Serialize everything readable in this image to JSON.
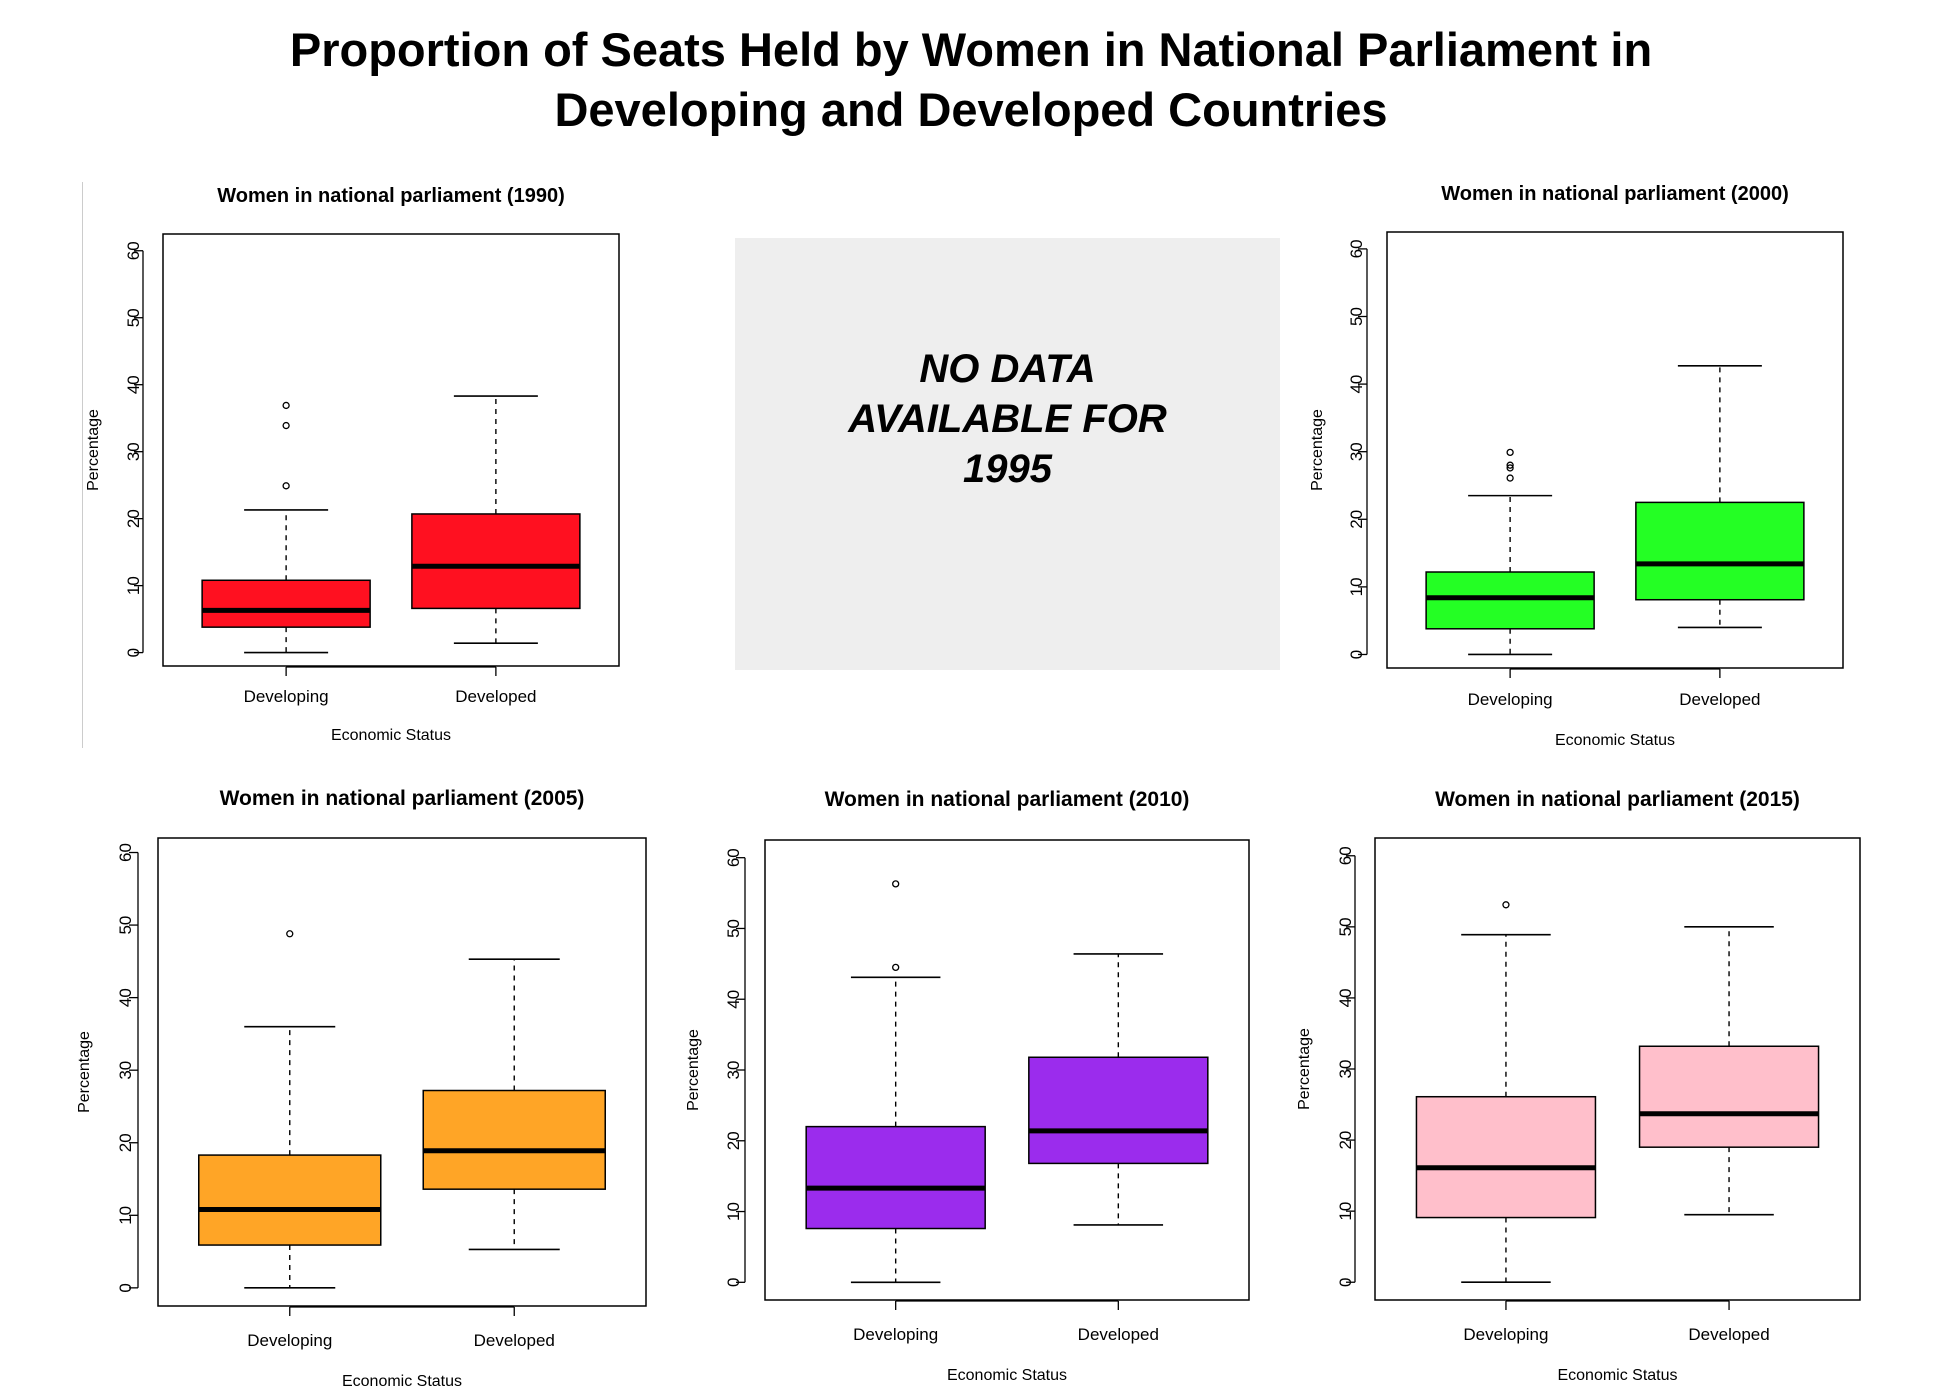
{
  "title_lines": [
    "Proportion of Seats Held by Women in National Parliament in",
    "Developing and Developed Countries"
  ],
  "no_data_text": "NO DATA AVAILABLE FOR 1995",
  "chart_data": [
    {
      "type": "boxplot",
      "year": "1990",
      "title": "Women in national parliament (1990)",
      "xlabel": "Economic Status",
      "ylabel": "Percentage",
      "categories": [
        "Developing",
        "Developed"
      ],
      "ylim": [
        -2,
        62.5
      ],
      "yticks": [
        0,
        10,
        20,
        30,
        40,
        50,
        60
      ],
      "fill": "#ff1020",
      "boxes": [
        {
          "min": 0,
          "q1": 3.8,
          "median": 6.3,
          "q3": 10.8,
          "max": 21.3,
          "outliers": [
            24.9,
            33.9,
            36.9
          ]
        },
        {
          "min": 1.4,
          "q1": 6.6,
          "median": 12.9,
          "q3": 20.7,
          "max": 38.3,
          "outliers": []
        }
      ]
    },
    {
      "type": "boxplot",
      "year": "2000",
      "title": "Women in national parliament (2000)",
      "xlabel": "Economic Status",
      "ylabel": "Percentage",
      "categories": [
        "Developing",
        "Developed"
      ],
      "ylim": [
        -2,
        62.5
      ],
      "yticks": [
        0,
        10,
        20,
        30,
        40,
        50,
        60
      ],
      "fill": "#24ff24",
      "boxes": [
        {
          "min": 0,
          "q1": 3.8,
          "median": 8.4,
          "q3": 12.2,
          "max": 23.5,
          "outliers": [
            26.1,
            27.6,
            28.0,
            29.9
          ]
        },
        {
          "min": 4.0,
          "q1": 8.1,
          "median": 13.4,
          "q3": 22.5,
          "max": 42.7,
          "outliers": []
        }
      ]
    },
    {
      "type": "boxplot",
      "year": "2005",
      "title": "Women in national parliament (2005)",
      "xlabel": "Economic Status",
      "ylabel": "Percentage",
      "categories": [
        "Developing",
        "Developed"
      ],
      "ylim": [
        -2.5,
        62
      ],
      "yticks": [
        0,
        10,
        20,
        30,
        40,
        50,
        60
      ],
      "fill": "#ffa526",
      "boxes": [
        {
          "min": 0,
          "q1": 5.9,
          "median": 10.8,
          "q3": 18.3,
          "max": 36.0,
          "outliers": [
            48.8
          ]
        },
        {
          "min": 5.3,
          "q1": 13.6,
          "median": 18.9,
          "q3": 27.2,
          "max": 45.3,
          "outliers": []
        }
      ]
    },
    {
      "type": "boxplot",
      "year": "2010",
      "title": "Women in national parliament (2010)",
      "xlabel": "Economic Status",
      "ylabel": "Percentage",
      "categories": [
        "Developing",
        "Developed"
      ],
      "ylim": [
        -2.5,
        62.5
      ],
      "yticks": [
        0,
        10,
        20,
        30,
        40,
        50,
        60
      ],
      "fill": "#9b2ced",
      "boxes": [
        {
          "min": 0,
          "q1": 7.6,
          "median": 13.3,
          "q3": 22.0,
          "max": 43.1,
          "outliers": [
            44.5,
            56.3
          ]
        },
        {
          "min": 8.1,
          "q1": 16.8,
          "median": 21.4,
          "q3": 31.8,
          "max": 46.4,
          "outliers": []
        }
      ]
    },
    {
      "type": "boxplot",
      "year": "2015",
      "title": "Women in national parliament (2015)",
      "xlabel": "Economic Status",
      "ylabel": "Percentage",
      "categories": [
        "Developing",
        "Developed"
      ],
      "ylim": [
        -2.5,
        62.5
      ],
      "yticks": [
        0,
        10,
        20,
        30,
        40,
        50,
        60
      ],
      "fill": "#ffbfcb",
      "boxes": [
        {
          "min": 0,
          "q1": 9.1,
          "median": 16.1,
          "q3": 26.1,
          "max": 48.9,
          "outliers": [
            53.1
          ]
        },
        {
          "min": 9.5,
          "q1": 19.0,
          "median": 23.7,
          "q3": 33.2,
          "max": 50.0,
          "outliers": []
        }
      ]
    }
  ]
}
